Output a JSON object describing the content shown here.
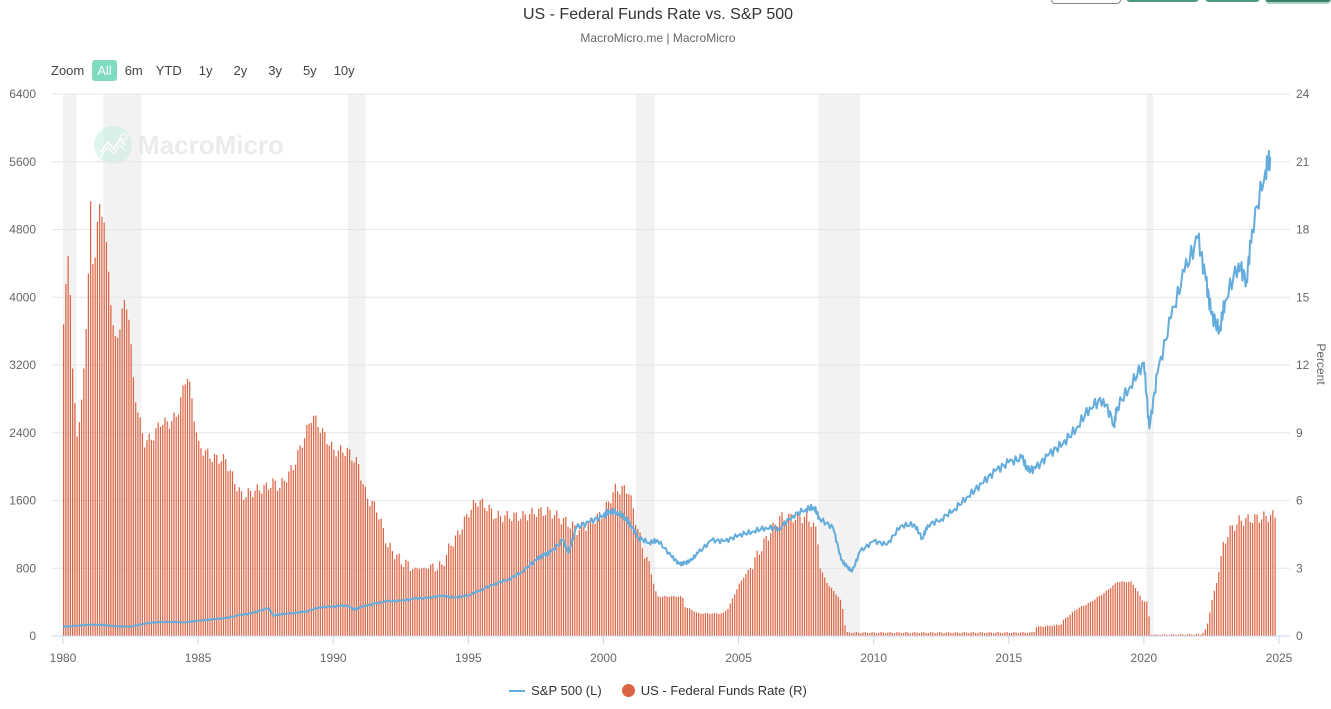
{
  "header": {
    "title": "US - Federal Funds Rate vs. S&P 500",
    "subtitle": "MacroMicro.me | MacroMicro"
  },
  "watermark": "MacroMicro",
  "range_selector": {
    "label": "Zoom",
    "buttons": [
      "All",
      "6m",
      "YTD",
      "1y",
      "2y",
      "3y",
      "5y",
      "10y"
    ],
    "active": "All"
  },
  "colors": {
    "sp500": "#64acdb",
    "fed_funds": "#dc6443",
    "recession": "#f2f2f2",
    "range_active": "#7fdbc0",
    "top_buttons": "#4f9a7e"
  },
  "chart_data": {
    "type": "line+bar",
    "title": "US - Federal Funds Rate vs. S&P 500",
    "xlabel": "",
    "x_ticks": [
      "1980",
      "1985",
      "1990",
      "1995",
      "2000",
      "2005",
      "2010",
      "2015",
      "2020",
      "2025"
    ],
    "xlim": [
      1980,
      2025
    ],
    "y_left": {
      "label": "",
      "ticks": [
        "0",
        "800",
        "1600",
        "2400",
        "3200",
        "4000",
        "4800",
        "5600",
        "6400"
      ],
      "ylim": [
        0,
        6400
      ]
    },
    "y_right": {
      "label": "Percent",
      "ticks": [
        "0",
        "3",
        "6",
        "9",
        "12",
        "15",
        "18",
        "21",
        "24"
      ],
      "ylim": [
        0,
        24
      ]
    },
    "grid": true,
    "legend": {
      "position": "bottom",
      "entries": [
        "S&P 500 (L)",
        "US - Federal Funds Rate (R)"
      ]
    },
    "recessions": [
      [
        1980.0,
        1980.5
      ],
      [
        1981.5,
        1982.9
      ],
      [
        1990.55,
        1991.2
      ],
      [
        2001.2,
        2001.9
      ],
      [
        2007.95,
        2009.5
      ],
      [
        2020.1,
        2020.35
      ]
    ],
    "series": [
      {
        "name": "S&P 500 (L)",
        "axis": "left",
        "kind": "line",
        "x": [
          1980,
          1980.5,
          1981,
          1981.5,
          1982,
          1982.5,
          1983,
          1983.5,
          1984,
          1984.5,
          1985,
          1985.5,
          1986,
          1986.5,
          1987,
          1987.6,
          1987.8,
          1988,
          1988.5,
          1989,
          1989.5,
          1990,
          1990.5,
          1990.8,
          1991,
          1991.5,
          1992,
          1992.5,
          1993,
          1993.5,
          1994,
          1994.5,
          1995,
          1995.5,
          1996,
          1996.5,
          1997,
          1997.5,
          1997.8,
          1998,
          1998.5,
          1998.7,
          1999,
          1999.5,
          2000,
          2000.2,
          2000.5,
          2000.8,
          2001,
          2001.3,
          2001.7,
          2002,
          2002.5,
          2002.8,
          2003,
          2003.2,
          2003.5,
          2004,
          2004.5,
          2005,
          2005.5,
          2006,
          2006.5,
          2007,
          2007.5,
          2007.8,
          2008,
          2008.5,
          2008.8,
          2009,
          2009.2,
          2009.5,
          2010,
          2010.5,
          2011,
          2011.5,
          2011.8,
          2012,
          2012.5,
          2013,
          2013.5,
          2014,
          2014.5,
          2015,
          2015.5,
          2015.7,
          2016,
          2016.5,
          2017,
          2017.5,
          2018,
          2018.5,
          2018.9,
          2019,
          2019.5,
          2020,
          2020.2,
          2020.5,
          2021,
          2021.5,
          2022,
          2022.3,
          2022.5,
          2022.8,
          2023,
          2023.5,
          2023.8,
          2024,
          2024.5,
          2024.7
        ],
        "values": [
          110,
          120,
          135,
          130,
          115,
          110,
          145,
          165,
          165,
          160,
          180,
          195,
          210,
          245,
          270,
          330,
          240,
          255,
          270,
          290,
          340,
          350,
          360,
          310,
          340,
          380,
          410,
          415,
          440,
          450,
          475,
          455,
          480,
          550,
          620,
          670,
          760,
          900,
          960,
          980,
          1130,
          980,
          1280,
          1350,
          1420,
          1470,
          1460,
          1400,
          1320,
          1160,
          1100,
          1130,
          950,
          850,
          860,
          880,
          980,
          1130,
          1120,
          1190,
          1230,
          1280,
          1270,
          1420,
          1500,
          1520,
          1380,
          1280,
          900,
          820,
          760,
          1000,
          1120,
          1080,
          1300,
          1320,
          1150,
          1310,
          1380,
          1500,
          1650,
          1800,
          1950,
          2050,
          2100,
          1950,
          1980,
          2150,
          2270,
          2450,
          2700,
          2800,
          2500,
          2700,
          2950,
          3230,
          2450,
          3100,
          3750,
          4300,
          4700,
          4200,
          3800,
          3600,
          3950,
          4400,
          4200,
          4800,
          5500,
          5650
        ]
      },
      {
        "name": "US - Federal Funds Rate (R)",
        "axis": "right",
        "kind": "bar",
        "x_start": 1980.0,
        "step": "monthly",
        "keyframes_x": [
          1980.0,
          1980.2,
          1980.35,
          1980.5,
          1980.7,
          1980.9,
          1981.0,
          1981.1,
          1981.3,
          1981.5,
          1981.7,
          1981.9,
          1982.0,
          1982.2,
          1982.4,
          1982.6,
          1982.75,
          1982.9,
          1983.0,
          1983.3,
          1983.6,
          1983.9,
          1984.2,
          1984.5,
          1984.6,
          1984.8,
          1985.0,
          1985.5,
          1986.0,
          1986.3,
          1986.6,
          1987.0,
          1987.5,
          1987.8,
          1988.0,
          1988.5,
          1989.0,
          1989.2,
          1989.5,
          1990.0,
          1990.5,
          1990.9,
          1991.2,
          1991.6,
          1992.0,
          1992.5,
          1993.0,
          1993.5,
          1994.0,
          1994.3,
          1994.6,
          1995.0,
          1995.3,
          1995.6,
          1996.0,
          1996.5,
          1997.0,
          1997.5,
          1998.0,
          1998.8,
          1999.0,
          1999.5,
          2000.0,
          2000.4,
          2000.9,
          2001.1,
          2001.4,
          2001.7,
          2001.9,
          2002.0,
          2002.9,
          2003.0,
          2003.5,
          2004.4,
          2004.6,
          2005.0,
          2005.5,
          2006.0,
          2006.5,
          2007.5,
          2007.7,
          2007.9,
          2008.0,
          2008.3,
          2008.5,
          2008.8,
          2008.95,
          2009.0,
          2015.9,
          2016.0,
          2016.9,
          2017.0,
          2017.5,
          2018.0,
          2018.5,
          2018.9,
          2019.0,
          2019.5,
          2019.7,
          2019.9,
          2020.1,
          2020.25,
          2022.1,
          2022.3,
          2022.5,
          2022.7,
          2022.9,
          2023.1,
          2023.5,
          2024.7,
          2024.85
        ],
        "keyframes_values": [
          13.8,
          17.5,
          11.0,
          9.0,
          10.5,
          15.5,
          19.0,
          16.0,
          19.0,
          18.5,
          15.5,
          13.0,
          13.2,
          14.7,
          14.5,
          11.0,
          10.0,
          9.0,
          8.6,
          8.8,
          9.5,
          9.4,
          9.8,
          11.3,
          11.6,
          10.0,
          8.4,
          7.9,
          7.8,
          6.9,
          6.2,
          6.4,
          6.6,
          6.8,
          6.6,
          7.5,
          9.1,
          9.8,
          9.2,
          8.2,
          8.2,
          7.6,
          6.2,
          5.6,
          4.0,
          3.3,
          3.0,
          3.0,
          3.1,
          4.0,
          4.5,
          5.5,
          6.0,
          5.8,
          5.3,
          5.3,
          5.3,
          5.5,
          5.5,
          4.9,
          4.7,
          5.0,
          5.5,
          6.5,
          6.5,
          5.5,
          4.0,
          3.0,
          2.0,
          1.75,
          1.75,
          1.3,
          1.0,
          1.0,
          1.25,
          2.3,
          3.2,
          4.3,
          5.25,
          5.25,
          5.0,
          4.5,
          3.0,
          2.25,
          2.0,
          1.5,
          0.2,
          0.15,
          0.15,
          0.4,
          0.5,
          0.7,
          1.2,
          1.5,
          1.9,
          2.3,
          2.4,
          2.4,
          2.1,
          1.6,
          1.5,
          0.05,
          0.08,
          0.33,
          1.6,
          2.5,
          3.9,
          4.6,
          5.1,
          5.33,
          5.33
        ]
      }
    ]
  }
}
